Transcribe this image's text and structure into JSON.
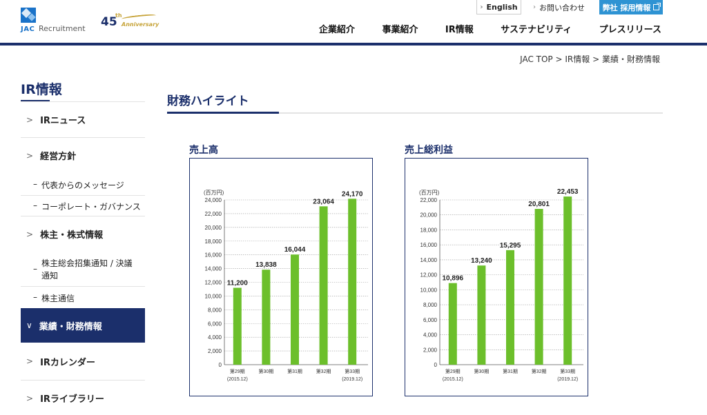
{
  "header": {
    "logo_jac": "JAC",
    "logo_name": "Recruitment",
    "anniversary_number": "45",
    "anniversary_suffix": "th",
    "anniversary_word": "Anniversary",
    "utility": {
      "english": "English",
      "contact": "お問い合わせ",
      "recruit": "弊社 採用情報"
    },
    "nav": [
      "企業紹介",
      "事業紹介",
      "IR情報",
      "サステナビリティ",
      "プレスリリース"
    ]
  },
  "breadcrumb": {
    "items": [
      "JAC TOP",
      "IR情報",
      "業績・財務情報"
    ],
    "separator": ">"
  },
  "sidebar": {
    "title": "IR情報",
    "items": [
      {
        "type": "main",
        "label": "IRニュース",
        "mark": ">"
      },
      {
        "type": "main",
        "label": "経営方針",
        "mark": ">"
      },
      {
        "type": "sub",
        "label": "代表からのメッセージ",
        "mark": "–"
      },
      {
        "type": "sub",
        "label": "コーポレート・ガバナンス",
        "mark": "–"
      },
      {
        "type": "main",
        "label": "株主・株式情報",
        "mark": ">"
      },
      {
        "type": "sub",
        "label": "株主総会招集通知 / 決議通知",
        "mark": "–"
      },
      {
        "type": "sub",
        "label": "株主通信",
        "mark": "–"
      },
      {
        "type": "main",
        "label": "業績・財務情報",
        "mark": "∨",
        "active": true
      },
      {
        "type": "main",
        "label": "IRカレンダー",
        "mark": ">"
      },
      {
        "type": "main",
        "label": "IRライブラリー",
        "mark": ">"
      }
    ]
  },
  "main": {
    "title": "財務ハイライト"
  },
  "colors": {
    "navy": "#1b2f6b",
    "bar": "#6cbf2b",
    "recruit_button": "#2e93d3"
  },
  "chart_data": [
    {
      "type": "bar",
      "title": "売上高",
      "unit": "(百万円)",
      "categories": [
        "第29期",
        "第30期",
        "第31期",
        "第32期",
        "第33期"
      ],
      "category_notes": [
        "(2015.12)",
        "",
        "",
        "",
        "(2019.12)"
      ],
      "values": [
        11200,
        13838,
        16044,
        23064,
        24170
      ],
      "value_labels": [
        "11,200",
        "13,838",
        "16,044",
        "23,064",
        "24,170"
      ],
      "ylim": [
        0,
        24000
      ],
      "yticks": [
        "0",
        "2,000",
        "4,000",
        "6,000",
        "8,000",
        "10,000",
        "12,000",
        "14,000",
        "16,000",
        "18,000",
        "20,000",
        "22,000",
        "24,000"
      ],
      "grid": true
    },
    {
      "type": "bar",
      "title": "売上総利益",
      "unit": "(百万円)",
      "categories": [
        "第29期",
        "第30期",
        "第31期",
        "第32期",
        "第33期"
      ],
      "category_notes": [
        "(2015.12)",
        "",
        "",
        "",
        "(2019.12)"
      ],
      "values": [
        10896,
        13240,
        15295,
        20801,
        22453
      ],
      "value_labels": [
        "10,896",
        "13,240",
        "15,295",
        "20,801",
        "22,453"
      ],
      "ylim": [
        0,
        22000
      ],
      "yticks": [
        "0",
        "2,000",
        "4,000",
        "6,000",
        "8,000",
        "10,000",
        "12,000",
        "14,000",
        "16,000",
        "18,000",
        "20,000",
        "22,000"
      ],
      "grid": true
    }
  ]
}
